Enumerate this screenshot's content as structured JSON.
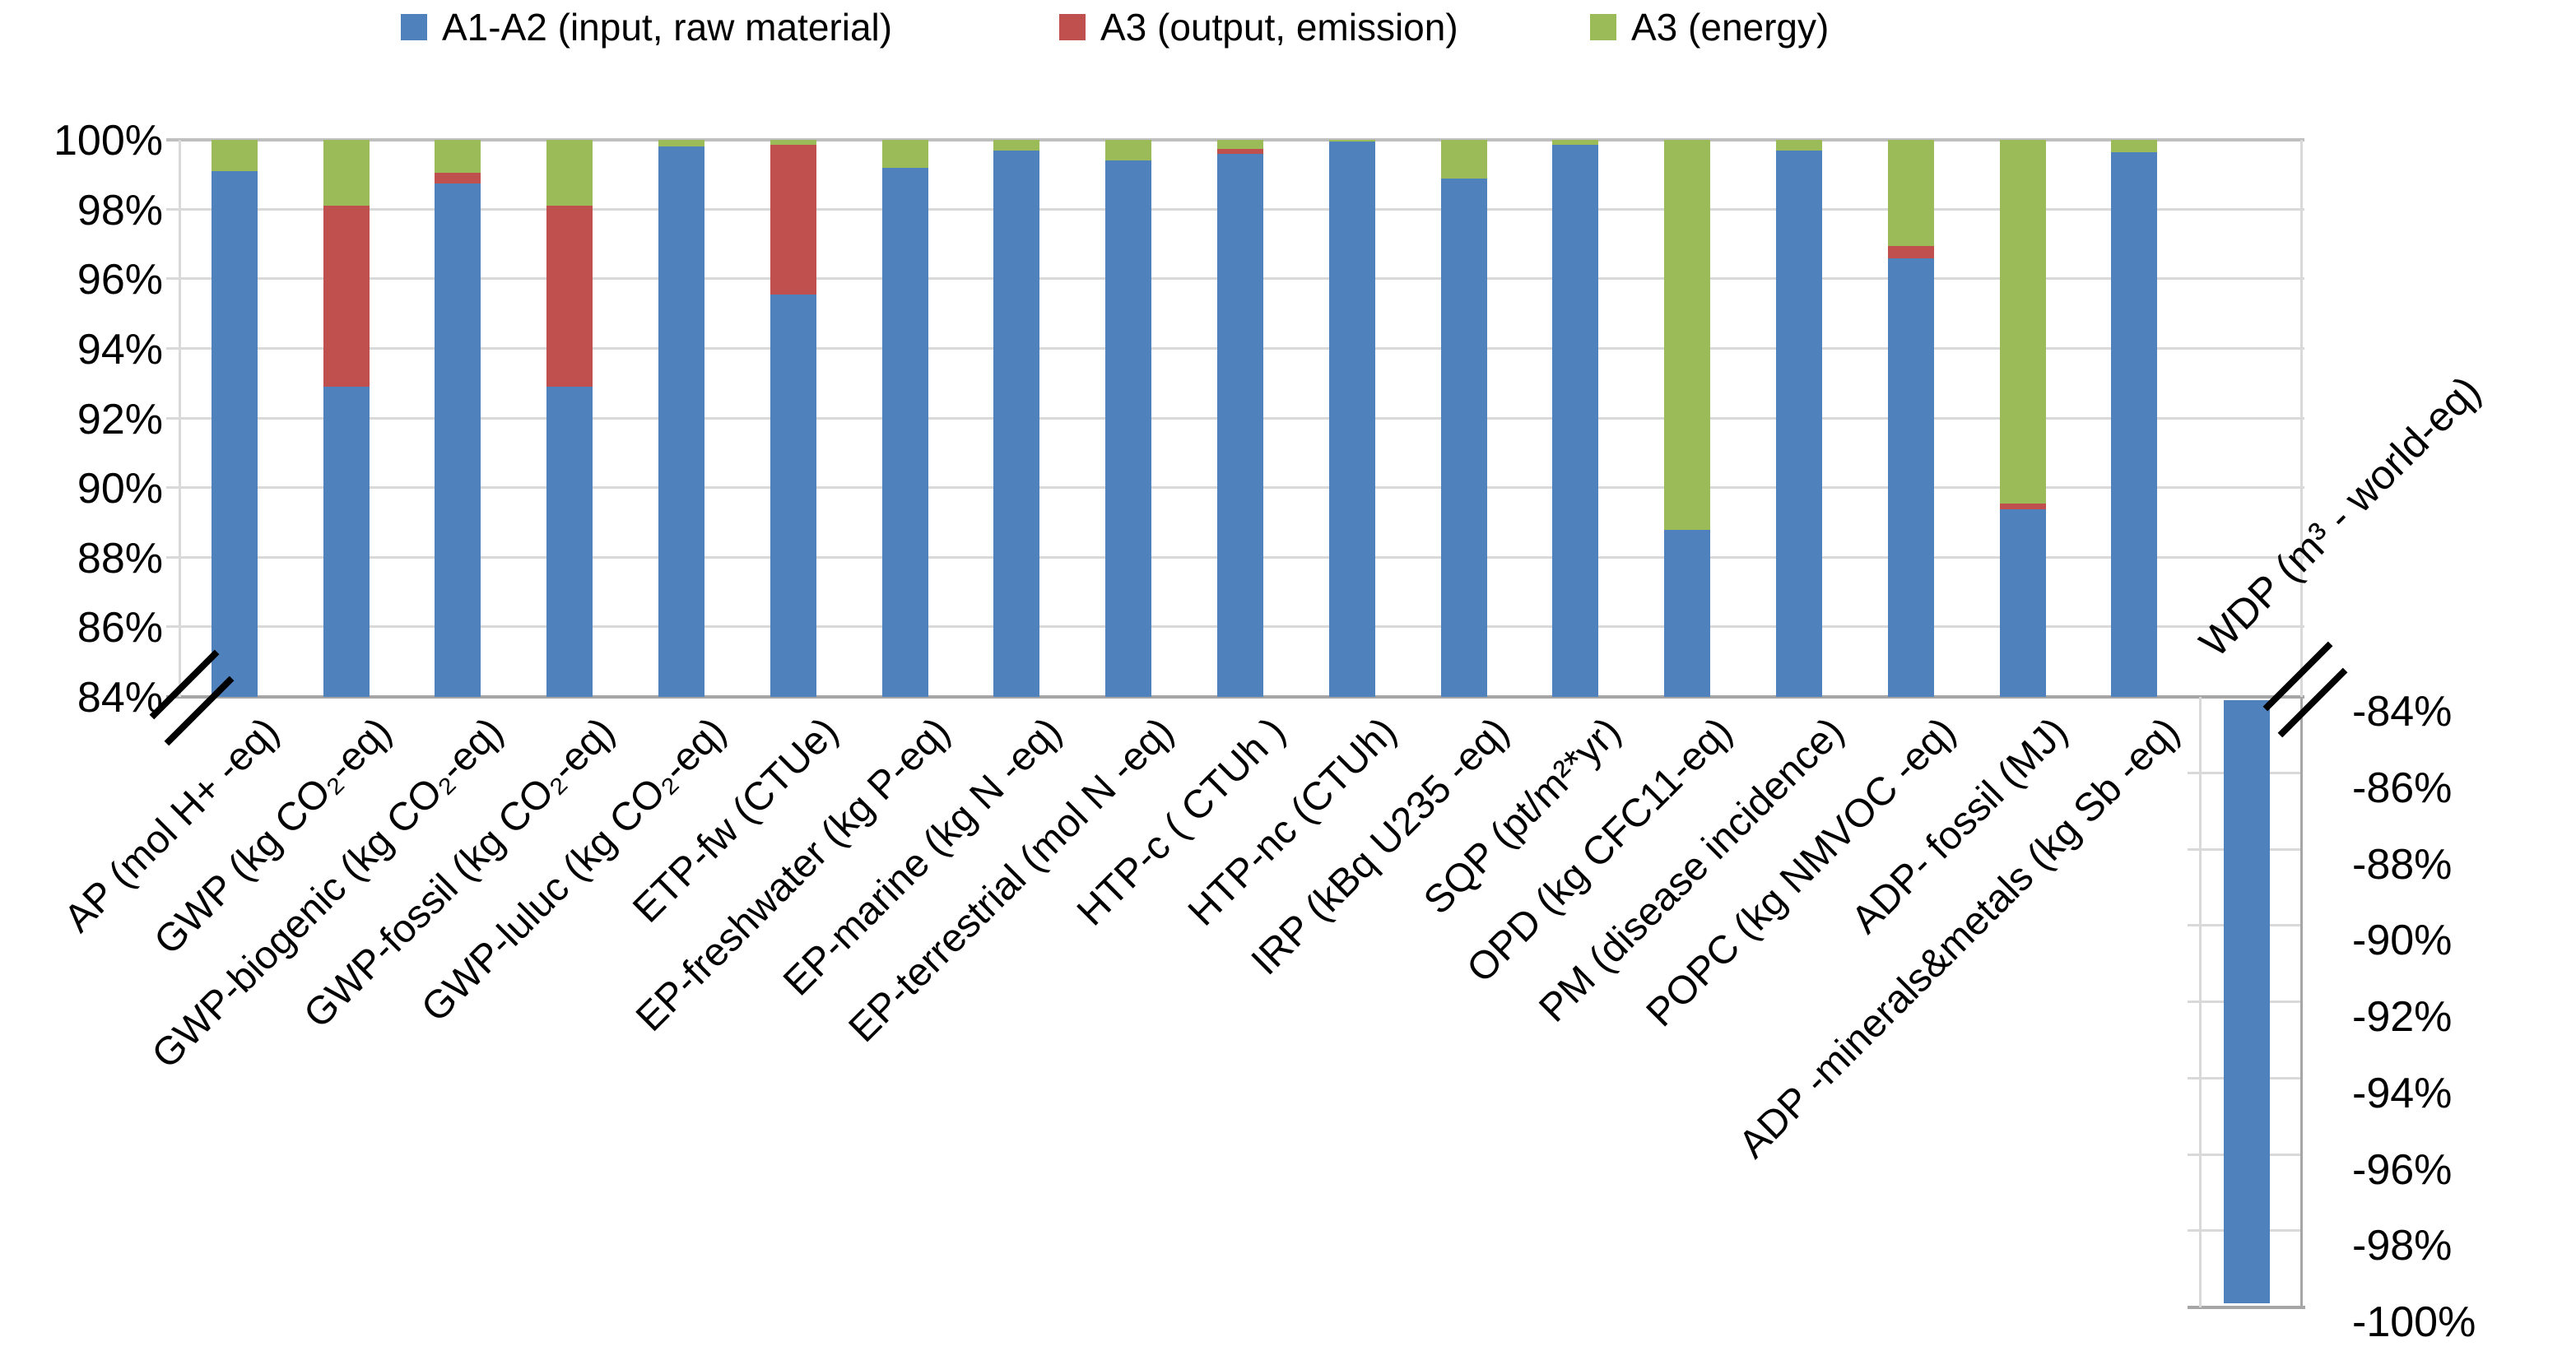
{
  "legend": {
    "items": [
      {
        "label": "A1-A2 (input, raw material)",
        "color": "#4F81BD"
      },
      {
        "label": "A3 (output, emission)",
        "color": "#C0504D"
      },
      {
        "label": "A3 (energy)",
        "color": "#9BBB59"
      }
    ]
  },
  "chart_data": {
    "type": "bar",
    "stacked": true,
    "orientation": "vertical",
    "grid": true,
    "legend_position": "top",
    "categories": [
      "AP (mol H+ -eq)",
      "GWP (kg CO₂-eq)",
      "GWP-biogenic (kg CO₂-eq)",
      "GWP-fossil (kg CO₂-eq)",
      "GWP-luluc (kg CO₂-eq)",
      "ETP-fw (CTUe)",
      "EP-freshwater (kg P-eq)",
      "EP-marine (kg N -eq)",
      "EP-terrestrial (mol N -eq)",
      "HTP-c ( CTUh )",
      "HTP-nc (CTUh)",
      "IRP (kBq U235 -eq)",
      "SQP (pt/m²*yr)",
      "OPD (kg CFC11-eq)",
      "PM (disease incidence)",
      "POPC (kg NMVOC -eq)",
      "ADP- fossil (MJ)",
      "ADP -minerals&metals (kg Sb -eq)"
    ],
    "series": [
      {
        "name": "A1-A2 (input, raw material)",
        "color": "#4F81BD",
        "values": [
          99.1,
          92.9,
          98.75,
          92.9,
          99.8,
          95.55,
          99.2,
          99.7,
          99.4,
          99.6,
          99.95,
          98.9,
          99.85,
          88.8,
          99.7,
          96.6,
          89.4,
          99.65
        ]
      },
      {
        "name": "A3 (output, emission)",
        "color": "#C0504D",
        "values": [
          0,
          5.2,
          0.3,
          5.2,
          0,
          4.3,
          0,
          0,
          0,
          0.15,
          0,
          0,
          0,
          0,
          0,
          0.35,
          0.15,
          0
        ]
      },
      {
        "name": "A3 (energy)",
        "color": "#9BBB59",
        "values": [
          0.9,
          1.9,
          0.95,
          1.9,
          0.2,
          0.15,
          0.8,
          0.3,
          0.6,
          0.25,
          0.05,
          1.1,
          0.15,
          11.2,
          0.3,
          3.05,
          10.45,
          0.35
        ]
      }
    ],
    "primary_axis": {
      "min": 84,
      "max": 100,
      "step": 2,
      "axis_break": true,
      "ticks": [
        "84%",
        "86%",
        "88%",
        "90%",
        "92%",
        "94%",
        "96%",
        "98%",
        "100%"
      ]
    },
    "secondary_bar": {
      "category": "WDP (m³ - world-eq)",
      "series": "A1-A2 (input, raw material)",
      "value": -99.8,
      "color": "#4F81BD",
      "axis_break": true,
      "axis": {
        "min": -100,
        "max": -84,
        "step": -2,
        "ticks": [
          "-84%",
          "-86%",
          "-88%",
          "-90%",
          "-92%",
          "-94%",
          "-96%",
          "-98%",
          "-100%"
        ]
      }
    }
  }
}
